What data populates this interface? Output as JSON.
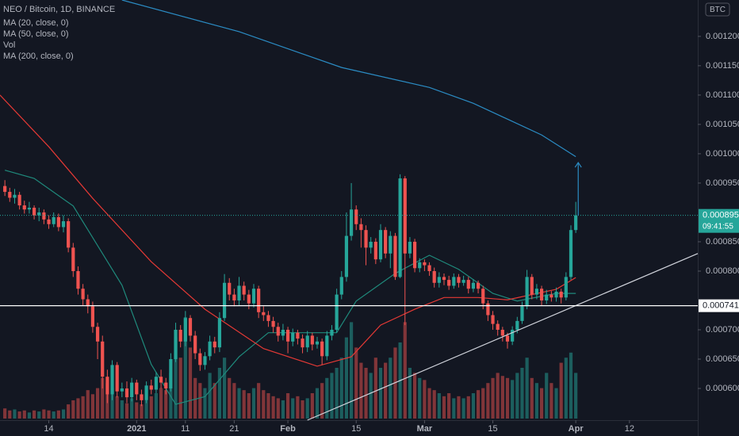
{
  "chart_data": {
    "type": "candlestick",
    "title": "NEO / Bitcoin, 1D, BINANCE",
    "currency": "BTC",
    "up_color": "#26a69a",
    "down_color": "#ef5350",
    "xlim": [
      -1,
      142
    ],
    "ylim": [
      0.000546,
      0.001262
    ],
    "yticks": [
      {
        "value": 0.0006,
        "label": "0.000600"
      },
      {
        "value": 0.00065,
        "label": "0.000650"
      },
      {
        "value": 0.0007,
        "label": "0.000700"
      },
      {
        "value": 0.0008,
        "label": "0.000800"
      },
      {
        "value": 0.00085,
        "label": "0.000850"
      },
      {
        "value": 0.00095,
        "label": "0.000950"
      },
      {
        "value": 0.001,
        "label": "0.001000"
      },
      {
        "value": 0.00105,
        "label": "0.001050"
      },
      {
        "value": 0.0011,
        "label": "0.001100"
      },
      {
        "value": 0.00115,
        "label": "0.001150"
      },
      {
        "value": 0.0012,
        "label": "0.001200"
      }
    ],
    "xticks": [
      {
        "value": 9,
        "label": "14"
      },
      {
        "value": 27,
        "label": "2021"
      },
      {
        "value": 37,
        "label": "11"
      },
      {
        "value": 47,
        "label": "21"
      },
      {
        "value": 58,
        "label": "Feb"
      },
      {
        "value": 72,
        "label": "15"
      },
      {
        "value": 86,
        "label": "Mar"
      },
      {
        "value": 100,
        "label": "15"
      },
      {
        "value": 117,
        "label": "Apr"
      },
      {
        "value": 128,
        "label": "12"
      }
    ],
    "candles": {
      "x": [
        0,
        1,
        2,
        3,
        4,
        5,
        6,
        7,
        8,
        9,
        10,
        11,
        12,
        13,
        14,
        15,
        16,
        17,
        18,
        19,
        20,
        21,
        22,
        23,
        24,
        25,
        26,
        27,
        28,
        29,
        30,
        31,
        32,
        33,
        34,
        35,
        36,
        37,
        38,
        39,
        40,
        41,
        42,
        43,
        44,
        45,
        46,
        47,
        48,
        49,
        50,
        51,
        52,
        53,
        54,
        55,
        56,
        57,
        58,
        59,
        60,
        61,
        62,
        63,
        64,
        65,
        66,
        67,
        68,
        69,
        70,
        71,
        72,
        73,
        74,
        75,
        76,
        77,
        78,
        79,
        80,
        81,
        82,
        83,
        84,
        85,
        86,
        87,
        88,
        89,
        90,
        91,
        92,
        93,
        94,
        95,
        96,
        97,
        98,
        99,
        100,
        101,
        102,
        103,
        104,
        105,
        106,
        107,
        108,
        109,
        110,
        111,
        112,
        113,
        114,
        115,
        116,
        117
      ],
      "open": [
        0.000945,
        0.000935,
        0.000925,
        0.00093,
        0.000912,
        0.000905,
        0.000908,
        0.000895,
        0.0009,
        0.000888,
        0.00088,
        0.000892,
        0.000875,
        0.000885,
        0.00084,
        0.0008,
        0.00077,
        0.000752,
        0.00074,
        0.000705,
        0.00068,
        0.00062,
        0.00059,
        0.00064,
        0.000595,
        0.0006,
        0.000585,
        0.00061,
        0.00059,
        0.00058,
        0.000605,
        0.000598,
        0.00062,
        0.00061,
        0.0006,
        0.00065,
        0.0007,
        0.00068,
        0.00072,
        0.00069,
        0.00066,
        0.00064,
        0.000655,
        0.00068,
        0.00067,
        0.00072,
        0.00078,
        0.00076,
        0.00075,
        0.000775,
        0.00076,
        0.000745,
        0.00077,
        0.00073,
        0.000725,
        0.000715,
        0.000705,
        0.00069,
        0.0007,
        0.00068,
        0.000695,
        0.000685,
        0.00067,
        0.00069,
        0.000675,
        0.00068,
        0.000655,
        0.00069,
        0.0007,
        0.00076,
        0.00079,
        0.00086,
        0.000905,
        0.00088,
        0.00087,
        0.00084,
        0.00085,
        0.00082,
        0.00087,
        0.00083,
        0.00086,
        0.00079,
        0.000958,
        0.00083,
        0.00085,
        0.000805,
        0.000815,
        0.00081,
        0.0008,
        0.00078,
        0.00079,
        0.000785,
        0.000775,
        0.00079,
        0.00078,
        0.000785,
        0.00077,
        0.00078,
        0.00077,
        0.000745,
        0.000725,
        0.00071,
        0.0007,
        0.00069,
        0.00068,
        0.0007,
        0.000715,
        0.00074,
        0.00079,
        0.00076,
        0.00077,
        0.00075,
        0.00076,
        0.000755,
        0.000765,
        0.000755,
        0.00079,
        0.00087
      ],
      "high": [
        0.000955,
        0.000942,
        0.00094,
        0.000935,
        0.00092,
        0.000918,
        0.000912,
        0.000908,
        0.000905,
        0.000895,
        0.0009,
        0.000898,
        0.000895,
        0.00089,
        0.000848,
        0.000808,
        0.000778,
        0.00076,
        0.000748,
        0.000712,
        0.00069,
        0.000632,
        0.000648,
        0.000645,
        0.00061,
        0.000612,
        0.000618,
        0.000615,
        0.000598,
        0.000612,
        0.000615,
        0.000628,
        0.000632,
        0.000618,
        0.00066,
        0.000712,
        0.000708,
        0.000732,
        0.000725,
        0.000698,
        0.000668,
        0.000662,
        0.00069,
        0.000688,
        0.00073,
        0.000795,
        0.000788,
        0.00077,
        0.00079,
        0.000782,
        0.000768,
        0.000778,
        0.000775,
        0.00074,
        0.000732,
        0.000722,
        0.000712,
        0.00071,
        0.000705,
        0.000702,
        0.0007,
        0.000692,
        0.000698,
        0.000695,
        0.000688,
        0.000685,
        0.000698,
        0.000708,
        0.00077,
        0.0008,
        0.0009,
        0.00095,
        0.000912,
        0.00089,
        0.000878,
        0.000858,
        0.000856,
        0.00088,
        0.000875,
        0.000868,
        0.000865,
        0.000965,
        0.000962,
        0.000858,
        0.000855,
        0.000822,
        0.00082,
        0.000815,
        0.000806,
        0.000798,
        0.000796,
        0.000792,
        0.000796,
        0.000795,
        0.000792,
        0.00079,
        0.000786,
        0.000784,
        0.000775,
        0.00075,
        0.000732,
        0.000716,
        0.000705,
        0.000695,
        0.000706,
        0.000722,
        0.000748,
        0.000802,
        0.000795,
        0.000778,
        0.000775,
        0.000768,
        0.000766,
        0.000772,
        0.00077,
        0.000798,
        0.000878,
        0.000918
      ],
      "low": [
        0.000928,
        0.000918,
        0.000915,
        0.000905,
        0.000898,
        0.000898,
        0.000888,
        0.000885,
        0.00088,
        0.000872,
        0.000875,
        0.000868,
        0.000866,
        0.000832,
        0.00079,
        0.00076,
        0.000742,
        0.000728,
        0.000695,
        0.00065,
        0.0006,
        0.000575,
        0.00058,
        0.000585,
        0.000585,
        0.000575,
        0.000578,
        0.00058,
        0.00057,
        0.000575,
        0.00059,
        0.000592,
        0.0006,
        0.00059,
        0.000595,
        0.000645,
        0.00067,
        0.000672,
        0.00068,
        0.00065,
        0.00063,
        0.000632,
        0.000648,
        0.00066,
        0.000662,
        0.000715,
        0.00075,
        0.00074,
        0.000742,
        0.00075,
        0.000735,
        0.000738,
        0.00072,
        0.000715,
        0.000705,
        0.000695,
        0.00068,
        0.000682,
        0.00066,
        0.000672,
        0.000675,
        0.00066,
        0.000662,
        0.000665,
        0.000668,
        0.00064,
        0.000648,
        0.000682,
        0.000695,
        0.000752,
        0.000782,
        0.000852,
        0.00087,
        0.00084,
        0.00081,
        0.00083,
        0.000812,
        0.000815,
        0.000822,
        0.000805,
        0.000785,
        0.000788,
        0.000708,
        0.000822,
        0.000798,
        0.000798,
        0.0008,
        0.000792,
        0.000772,
        0.000772,
        0.000776,
        0.000768,
        0.00077,
        0.000772,
        0.000775,
        0.000762,
        0.000764,
        0.000762,
        0.000735,
        0.000715,
        0.0007,
        0.00069,
        0.00068,
        0.000668,
        0.000674,
        0.000694,
        0.00071,
        0.000735,
        0.000752,
        0.000752,
        0.000742,
        0.000744,
        0.000748,
        0.000748,
        0.000745,
        0.00075,
        0.000785,
        0.000865
      ],
      "close": [
        0.000935,
        0.000925,
        0.00093,
        0.000912,
        0.000905,
        0.000908,
        0.000895,
        0.0009,
        0.000888,
        0.00088,
        0.000892,
        0.000875,
        0.000885,
        0.00084,
        0.0008,
        0.00077,
        0.000752,
        0.00074,
        0.000705,
        0.00068,
        0.00062,
        0.00059,
        0.00064,
        0.000595,
        0.0006,
        0.000585,
        0.00061,
        0.00059,
        0.00058,
        0.000605,
        0.000598,
        0.00062,
        0.00061,
        0.0006,
        0.00065,
        0.0007,
        0.00068,
        0.00072,
        0.00069,
        0.00066,
        0.00064,
        0.000655,
        0.00068,
        0.00067,
        0.00072,
        0.00078,
        0.00076,
        0.00075,
        0.000775,
        0.00076,
        0.000745,
        0.00077,
        0.00073,
        0.000725,
        0.000715,
        0.000705,
        0.00069,
        0.0007,
        0.00068,
        0.000695,
        0.000685,
        0.00067,
        0.00069,
        0.000675,
        0.00068,
        0.000655,
        0.00069,
        0.0007,
        0.00076,
        0.00079,
        0.00086,
        0.000905,
        0.00088,
        0.00087,
        0.00084,
        0.00085,
        0.00082,
        0.00087,
        0.00083,
        0.00086,
        0.00079,
        0.000958,
        0.00083,
        0.00085,
        0.000805,
        0.000815,
        0.00081,
        0.0008,
        0.00078,
        0.00079,
        0.000785,
        0.000775,
        0.00079,
        0.00078,
        0.000785,
        0.00077,
        0.00078,
        0.00077,
        0.000745,
        0.000725,
        0.00071,
        0.0007,
        0.00069,
        0.00068,
        0.0007,
        0.000715,
        0.00074,
        0.00079,
        0.00076,
        0.00077,
        0.00075,
        0.00076,
        0.000755,
        0.000765,
        0.000755,
        0.00079,
        0.00087,
        0.000895
      ]
    },
    "volume": {
      "name": "Vol",
      "lim": [
        0,
        100
      ],
      "values": [
        10,
        8,
        9,
        7,
        8,
        6,
        8,
        7,
        9,
        8,
        7,
        8,
        9,
        14,
        18,
        20,
        22,
        28,
        24,
        30,
        40,
        35,
        30,
        22,
        18,
        15,
        20,
        16,
        14,
        18,
        22,
        25,
        30,
        28,
        45,
        80,
        60,
        100,
        70,
        40,
        35,
        30,
        45,
        35,
        50,
        60,
        40,
        35,
        30,
        28,
        25,
        30,
        35,
        28,
        25,
        22,
        20,
        18,
        25,
        20,
        22,
        18,
        20,
        25,
        30,
        35,
        40,
        45,
        50,
        60,
        80,
        95,
        70,
        55,
        50,
        45,
        60,
        50,
        55,
        60,
        70,
        75,
        95,
        50,
        45,
        40,
        38,
        30,
        28,
        25,
        22,
        25,
        20,
        22,
        20,
        22,
        25,
        28,
        30,
        35,
        40,
        45,
        42,
        40,
        38,
        45,
        50,
        60,
        40,
        35,
        30,
        45,
        35,
        30,
        55,
        60,
        65,
        45
      ]
    },
    "series": [
      {
        "name": "MA (20, close, 0)",
        "color": "#1f8a7c",
        "x": [
          0,
          6,
          14,
          24,
          30,
          35,
          41,
          48,
          54,
          61,
          68,
          72,
          80,
          87,
          93,
          100,
          105,
          113,
          117
        ],
        "values": [
          0.000972,
          0.000958,
          0.000911,
          0.000776,
          0.000641,
          0.000573,
          0.000586,
          0.000654,
          0.000695,
          0.000695,
          0.000695,
          0.000749,
          0.000796,
          0.000827,
          0.000803,
          0.000762,
          0.000749,
          0.000762,
          0.000762
        ]
      },
      {
        "name": "MA (50, close, 0)",
        "color": "#e53935",
        "x": [
          -1,
          9,
          18,
          30,
          41,
          53,
          64,
          71,
          77,
          84,
          90,
          97,
          103,
          113,
          117
        ],
        "values": [
          0.0011,
          0.001012,
          0.000924,
          0.000816,
          0.000735,
          0.000668,
          0.000638,
          0.000654,
          0.000708,
          0.000735,
          0.000755,
          0.000755,
          0.000751,
          0.000769,
          0.000789
        ]
      },
      {
        "name": "MA (200, close, 0)",
        "color": "#2b8cc4",
        "x": [
          24,
          48,
          69,
          87,
          96,
          110,
          117
        ],
        "values": [
          0.001262,
          0.001208,
          0.001147,
          0.001113,
          0.001086,
          0.001032,
          0.000995
        ]
      }
    ],
    "trendline": {
      "x": [
        62,
        142
      ],
      "values": [
        0.000546,
        0.00083
      ]
    },
    "hline": {
      "value": 0.000741,
      "label": "0.000741"
    },
    "last": {
      "value": 0.000895,
      "label": "0.000895",
      "countdown": "09:41:55"
    },
    "arrow": {
      "x": 117.5,
      "from": 0.000895,
      "to": 0.000985
    }
  }
}
